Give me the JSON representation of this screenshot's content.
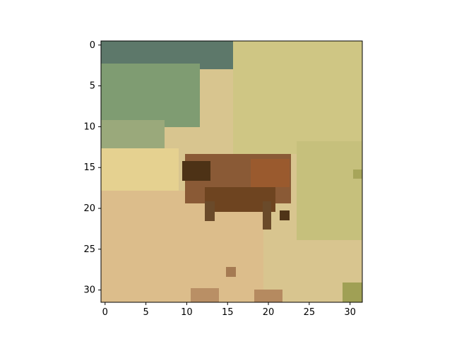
{
  "image": {
    "subject": "deer-icon",
    "colors": {
      "dark_slate": "#4f6a62",
      "sage_green": "#7f9c6e",
      "olive": "#b0b56d",
      "straw": "#d9c98f",
      "tan": "#d6b788",
      "deer_brown": "#7a4a26",
      "deer_dark": "#4a2f14",
      "pale": "#e6d6a0"
    }
  },
  "axes": {
    "x_ticks": [
      "0",
      "5",
      "10",
      "15",
      "20",
      "25",
      "30"
    ],
    "y_ticks": [
      "0",
      "5",
      "10",
      "15",
      "20",
      "25",
      "30"
    ]
  }
}
